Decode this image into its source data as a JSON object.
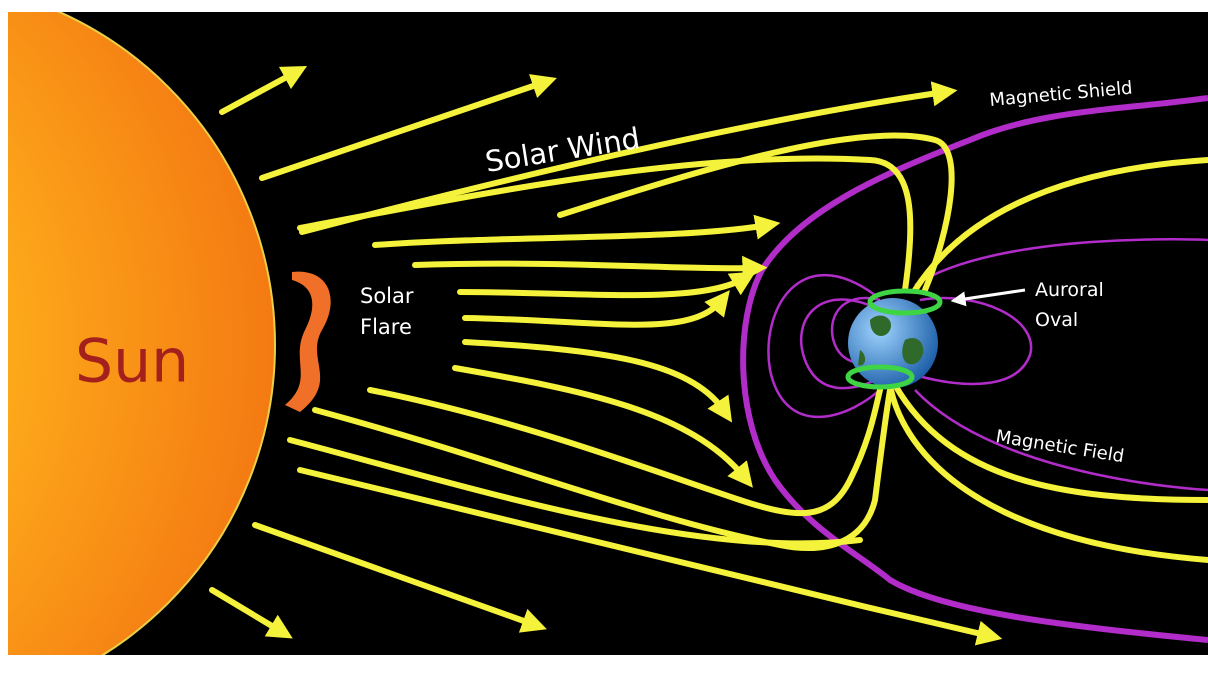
{
  "labels": {
    "sun": "Sun",
    "solar_wind": "Solar Wind",
    "solar_flare": [
      "Solar",
      "Flare"
    ],
    "magnetic_shield": "Magnetic Shield",
    "auroral_oval": [
      "Auroral",
      "Oval"
    ],
    "magnetic_field": "Magnetic Field"
  }
}
